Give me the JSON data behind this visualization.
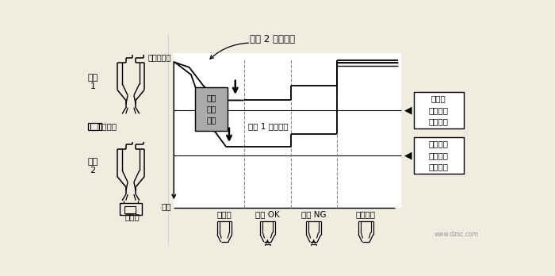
{
  "bg_color": "#f0ece0",
  "title": "吸嘴 2 压力曲线",
  "atm_label": "（大气压）",
  "vacuum_label": "真空",
  "nozzle1_label": "吸嘴 1 压力曲线",
  "auto_ref_label": "自动\n参照\n输入",
  "stage_labels": [
    "吸入前",
    "吸入 OK",
    "吸入 NG",
    "吸入结束"
  ],
  "box1_lines": [
    "电位器",
    "吸取真空",
    "度基准值"
  ],
  "box2_lines": [
    "片式元件",
    "吸取真空",
    "度基准值"
  ],
  "watermark": "www.dzsc.com"
}
